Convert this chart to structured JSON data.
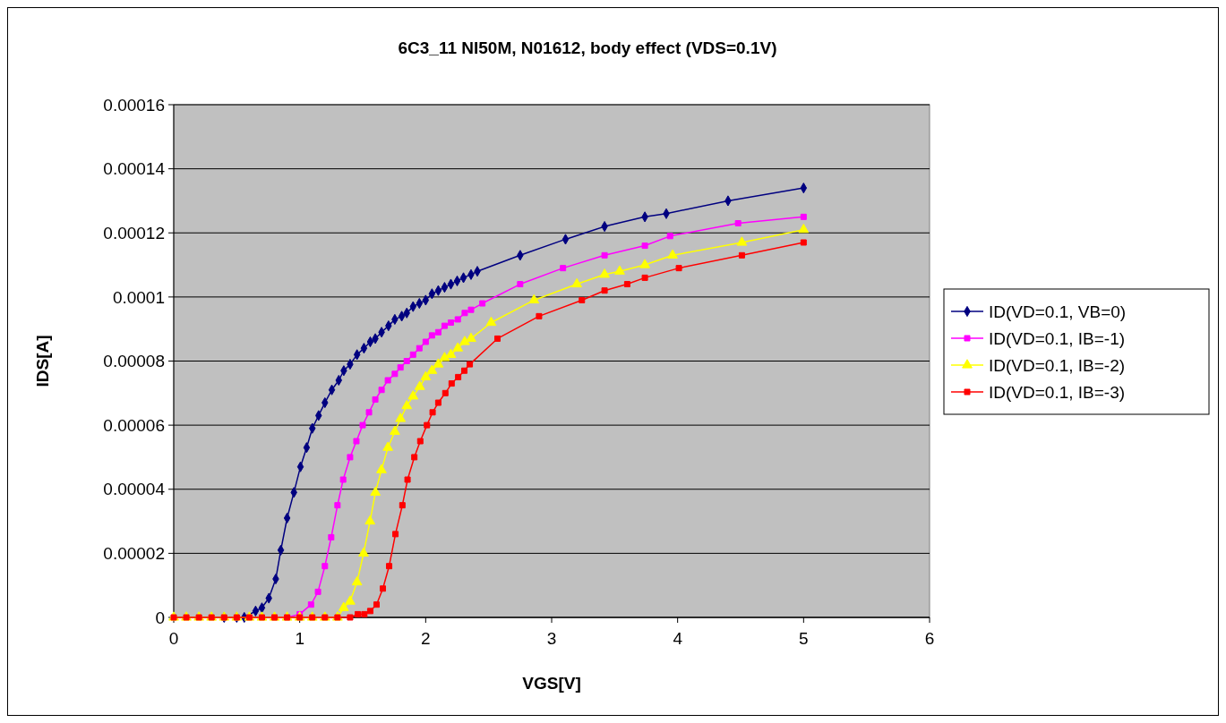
{
  "chart_data": {
    "type": "line",
    "title": "6C3_11 NI50M, N01612, body effect (VDS=0.1V)",
    "xlabel": "VGS[V]",
    "ylabel": "IDS[A]",
    "xlim": [
      0,
      6
    ],
    "xticks": [
      0,
      1,
      2,
      3,
      4,
      5,
      6
    ],
    "ylim": [
      0,
      0.00016
    ],
    "yticks": [
      0,
      {
        "value": 2e-05,
        "label": "0.00002"
      },
      {
        "value": 4e-05,
        "label": "0.00004"
      },
      {
        "value": 6e-05,
        "label": "0.00006"
      },
      {
        "value": 8e-05,
        "label": "0.00008"
      },
      {
        "value": 0.0001,
        "label": "0.0001"
      },
      {
        "value": 0.00012,
        "label": "0.00012"
      },
      {
        "value": 0.00014,
        "label": "0.00014"
      },
      {
        "value": 0.00016,
        "label": "0.00016"
      }
    ],
    "grid": "y",
    "legend": "right",
    "series": [
      {
        "name": "ID(VD=0.1, VB=0)",
        "color": "#000080",
        "marker": "diamond",
        "x": [
          0.4,
          0.5,
          0.56,
          0.65,
          0.7,
          0.755,
          0.81,
          0.85,
          0.9,
          0.954,
          1.006,
          1.055,
          1.1,
          1.15,
          1.2,
          1.255,
          1.31,
          1.35,
          1.4,
          1.455,
          1.51,
          1.56,
          1.6,
          1.65,
          1.705,
          1.755,
          1.81,
          1.85,
          1.9,
          1.95,
          2.0,
          2.05,
          2.1,
          2.15,
          2.2,
          2.25,
          2.3,
          2.36,
          2.41,
          2.75,
          3.11,
          3.42,
          3.74,
          3.91,
          4.4,
          5.0
        ],
        "values": [
          0,
          0,
          0,
          2e-06,
          3e-06,
          6e-06,
          1.2e-05,
          2.1e-05,
          3.1e-05,
          3.9e-05,
          4.7e-05,
          5.3e-05,
          5.9e-05,
          6.3e-05,
          6.7e-05,
          7.1e-05,
          7.4e-05,
          7.7e-05,
          7.9e-05,
          8.2e-05,
          8.4e-05,
          8.6e-05,
          8.7e-05,
          8.9e-05,
          9.1e-05,
          9.3e-05,
          9.4e-05,
          9.5e-05,
          9.7e-05,
          9.8e-05,
          9.9e-05,
          0.000101,
          0.000102,
          0.000103,
          0.000104,
          0.000105,
          0.000106,
          0.000107,
          0.000108,
          0.000113,
          0.000118,
          0.000122,
          0.000125,
          0.000126,
          0.00013,
          0.000134
        ]
      },
      {
        "name": "ID(VD=0.1, IB=-1)",
        "color": "#ff00ff",
        "marker": "square",
        "x": [
          0.8,
          0.9,
          1.0,
          1.09,
          1.145,
          1.2,
          1.25,
          1.3,
          1.345,
          1.4,
          1.45,
          1.5,
          1.55,
          1.6,
          1.65,
          1.7,
          1.755,
          1.8,
          1.85,
          1.9,
          1.95,
          2.0,
          2.05,
          2.1,
          2.15,
          2.2,
          2.255,
          2.31,
          2.36,
          2.45,
          2.75,
          3.09,
          3.42,
          3.74,
          3.94,
          4.48,
          5.0
        ],
        "values": [
          0,
          0,
          1e-06,
          4e-06,
          8e-06,
          1.6e-05,
          2.5e-05,
          3.5e-05,
          4.3e-05,
          5e-05,
          5.5e-05,
          6e-05,
          6.4e-05,
          6.8e-05,
          7.1e-05,
          7.4e-05,
          7.6e-05,
          7.8e-05,
          8e-05,
          8.2e-05,
          8.4e-05,
          8.6e-05,
          8.8e-05,
          8.9e-05,
          9.1e-05,
          9.2e-05,
          9.3e-05,
          9.5e-05,
          9.6e-05,
          9.8e-05,
          0.000104,
          0.000109,
          0.000113,
          0.000116,
          0.000119,
          0.000123,
          0.000125
        ]
      },
      {
        "name": "ID(VD=0.1, IB=-2)",
        "color": "#ffff00",
        "marker": "triangle",
        "x": [
          0,
          0.1,
          0.2,
          0.3,
          0.4,
          0.5,
          0.6,
          0.7,
          0.8,
          0.9,
          1.0,
          1.1,
          1.2,
          1.3,
          1.349,
          1.4,
          1.455,
          1.507,
          1.558,
          1.601,
          1.649,
          1.7,
          1.755,
          1.8,
          1.85,
          1.9,
          1.953,
          2.0,
          2.05,
          2.1,
          2.15,
          2.2,
          2.255,
          2.31,
          2.36,
          2.52,
          2.86,
          3.2,
          3.42,
          3.54,
          3.74,
          3.96,
          4.51,
          5.0
        ],
        "values": [
          0,
          0,
          0,
          0,
          0,
          0,
          0,
          0,
          0,
          0,
          0,
          0,
          0,
          0,
          3e-06,
          5e-06,
          1.1e-05,
          2e-05,
          3e-05,
          3.9e-05,
          4.6e-05,
          5.3e-05,
          5.8e-05,
          6.2e-05,
          6.6e-05,
          6.9e-05,
          7.2e-05,
          7.5e-05,
          7.7e-05,
          7.9e-05,
          8.1e-05,
          8.2e-05,
          8.4e-05,
          8.6e-05,
          8.7e-05,
          9.2e-05,
          9.9e-05,
          0.000104,
          0.000107,
          0.000108,
          0.00011,
          0.000113,
          0.000117,
          0.000121
        ]
      },
      {
        "name": "ID(VD=0.1, IB=-3)",
        "color": "#ff0000",
        "marker": "square",
        "x": [
          0,
          0.1,
          0.2,
          0.3,
          0.4,
          0.5,
          0.6,
          0.7,
          0.8,
          0.9,
          1.0,
          1.1,
          1.2,
          1.3,
          1.4,
          1.461,
          1.513,
          1.56,
          1.61,
          1.66,
          1.71,
          1.76,
          1.815,
          1.856,
          1.91,
          1.957,
          2.01,
          2.055,
          2.1,
          2.156,
          2.206,
          2.258,
          2.307,
          2.35,
          2.57,
          2.9,
          3.24,
          3.42,
          3.6,
          3.74,
          4.01,
          4.51,
          5.0
        ],
        "values": [
          0,
          0,
          0,
          0,
          0,
          0,
          0,
          0,
          0,
          0,
          0,
          0,
          0,
          0,
          0,
          1e-06,
          1e-06,
          2e-06,
          4e-06,
          9e-06,
          1.6e-05,
          2.6e-05,
          3.5e-05,
          4.3e-05,
          5e-05,
          5.5e-05,
          6e-05,
          6.4e-05,
          6.7e-05,
          7e-05,
          7.3e-05,
          7.5e-05,
          7.7e-05,
          7.9e-05,
          8.7e-05,
          9.4e-05,
          9.9e-05,
          0.000102,
          0.000104,
          0.000106,
          0.000109,
          0.000113,
          0.000117
        ]
      }
    ]
  }
}
